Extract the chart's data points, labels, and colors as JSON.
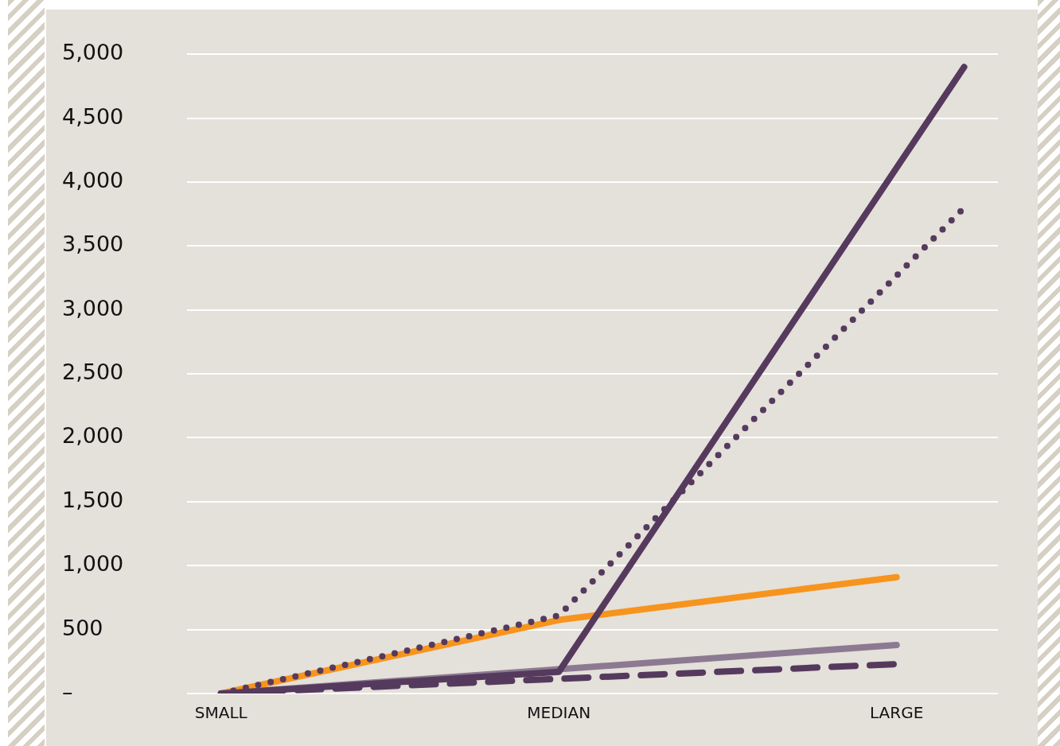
{
  "chart_data": {
    "type": "line",
    "categories": [
      null,
      "SMALL",
      null,
      null,
      null,
      null,
      null,
      null,
      null,
      null,
      null,
      "MEDIAN",
      null,
      null,
      null,
      null,
      null,
      null,
      null,
      null,
      null,
      "LARGE",
      null,
      null,
      null
    ],
    "ylim": [
      0,
      5000
    ],
    "yticks": [
      {
        "value": 0,
        "label": "–"
      },
      500,
      {
        "value": 1000,
        "label": "1,000"
      },
      {
        "value": 1500,
        "label": "1,500"
      },
      {
        "value": 2000,
        "label": "2,000"
      },
      {
        "value": 2500,
        "label": "2,500"
      },
      {
        "value": 3000,
        "label": "3,000"
      },
      {
        "value": 3500,
        "label": "3,500"
      },
      {
        "value": 4000,
        "label": "4,000"
      },
      {
        "value": 4500,
        "label": "4,500"
      },
      {
        "value": 5000,
        "label": "5,000"
      }
    ],
    "grid": "y",
    "legend": false,
    "marker": "none",
    "series": [
      {
        "color": "#553a5e",
        "line_style": "solid",
        "values": [
          null,
          0,
          null,
          null,
          null,
          null,
          null,
          null,
          null,
          null,
          null,
          170,
          null,
          null,
          null,
          null,
          null,
          null,
          null,
          null,
          null,
          null,
          null,
          4900,
          null
        ]
      },
      {
        "color": "#553a5e",
        "line_style": "dotted",
        "values": [
          null,
          0,
          null,
          null,
          null,
          null,
          null,
          null,
          null,
          null,
          null,
          610,
          null,
          null,
          null,
          null,
          null,
          null,
          null,
          null,
          null,
          null,
          null,
          3800,
          null
        ]
      },
      {
        "color": "#f7941d",
        "line_style": "solid",
        "values": [
          null,
          0,
          null,
          null,
          null,
          null,
          null,
          null,
          null,
          null,
          null,
          575,
          null,
          null,
          null,
          null,
          null,
          null,
          null,
          null,
          null,
          910,
          null,
          null,
          null
        ]
      },
      {
        "color": "#8c7a92",
        "line_style": "solid",
        "values": [
          null,
          0,
          null,
          null,
          null,
          null,
          null,
          null,
          null,
          null,
          null,
          null,
          null,
          null,
          null,
          null,
          null,
          null,
          null,
          null,
          null,
          380,
          null,
          null,
          null
        ]
      },
      {
        "color": "#553a5e",
        "line_style": "dashed",
        "values": [
          null,
          0,
          null,
          null,
          null,
          null,
          null,
          null,
          null,
          null,
          null,
          null,
          null,
          null,
          null,
          null,
          null,
          null,
          null,
          null,
          null,
          230,
          null,
          null,
          null
        ]
      }
    ]
  }
}
